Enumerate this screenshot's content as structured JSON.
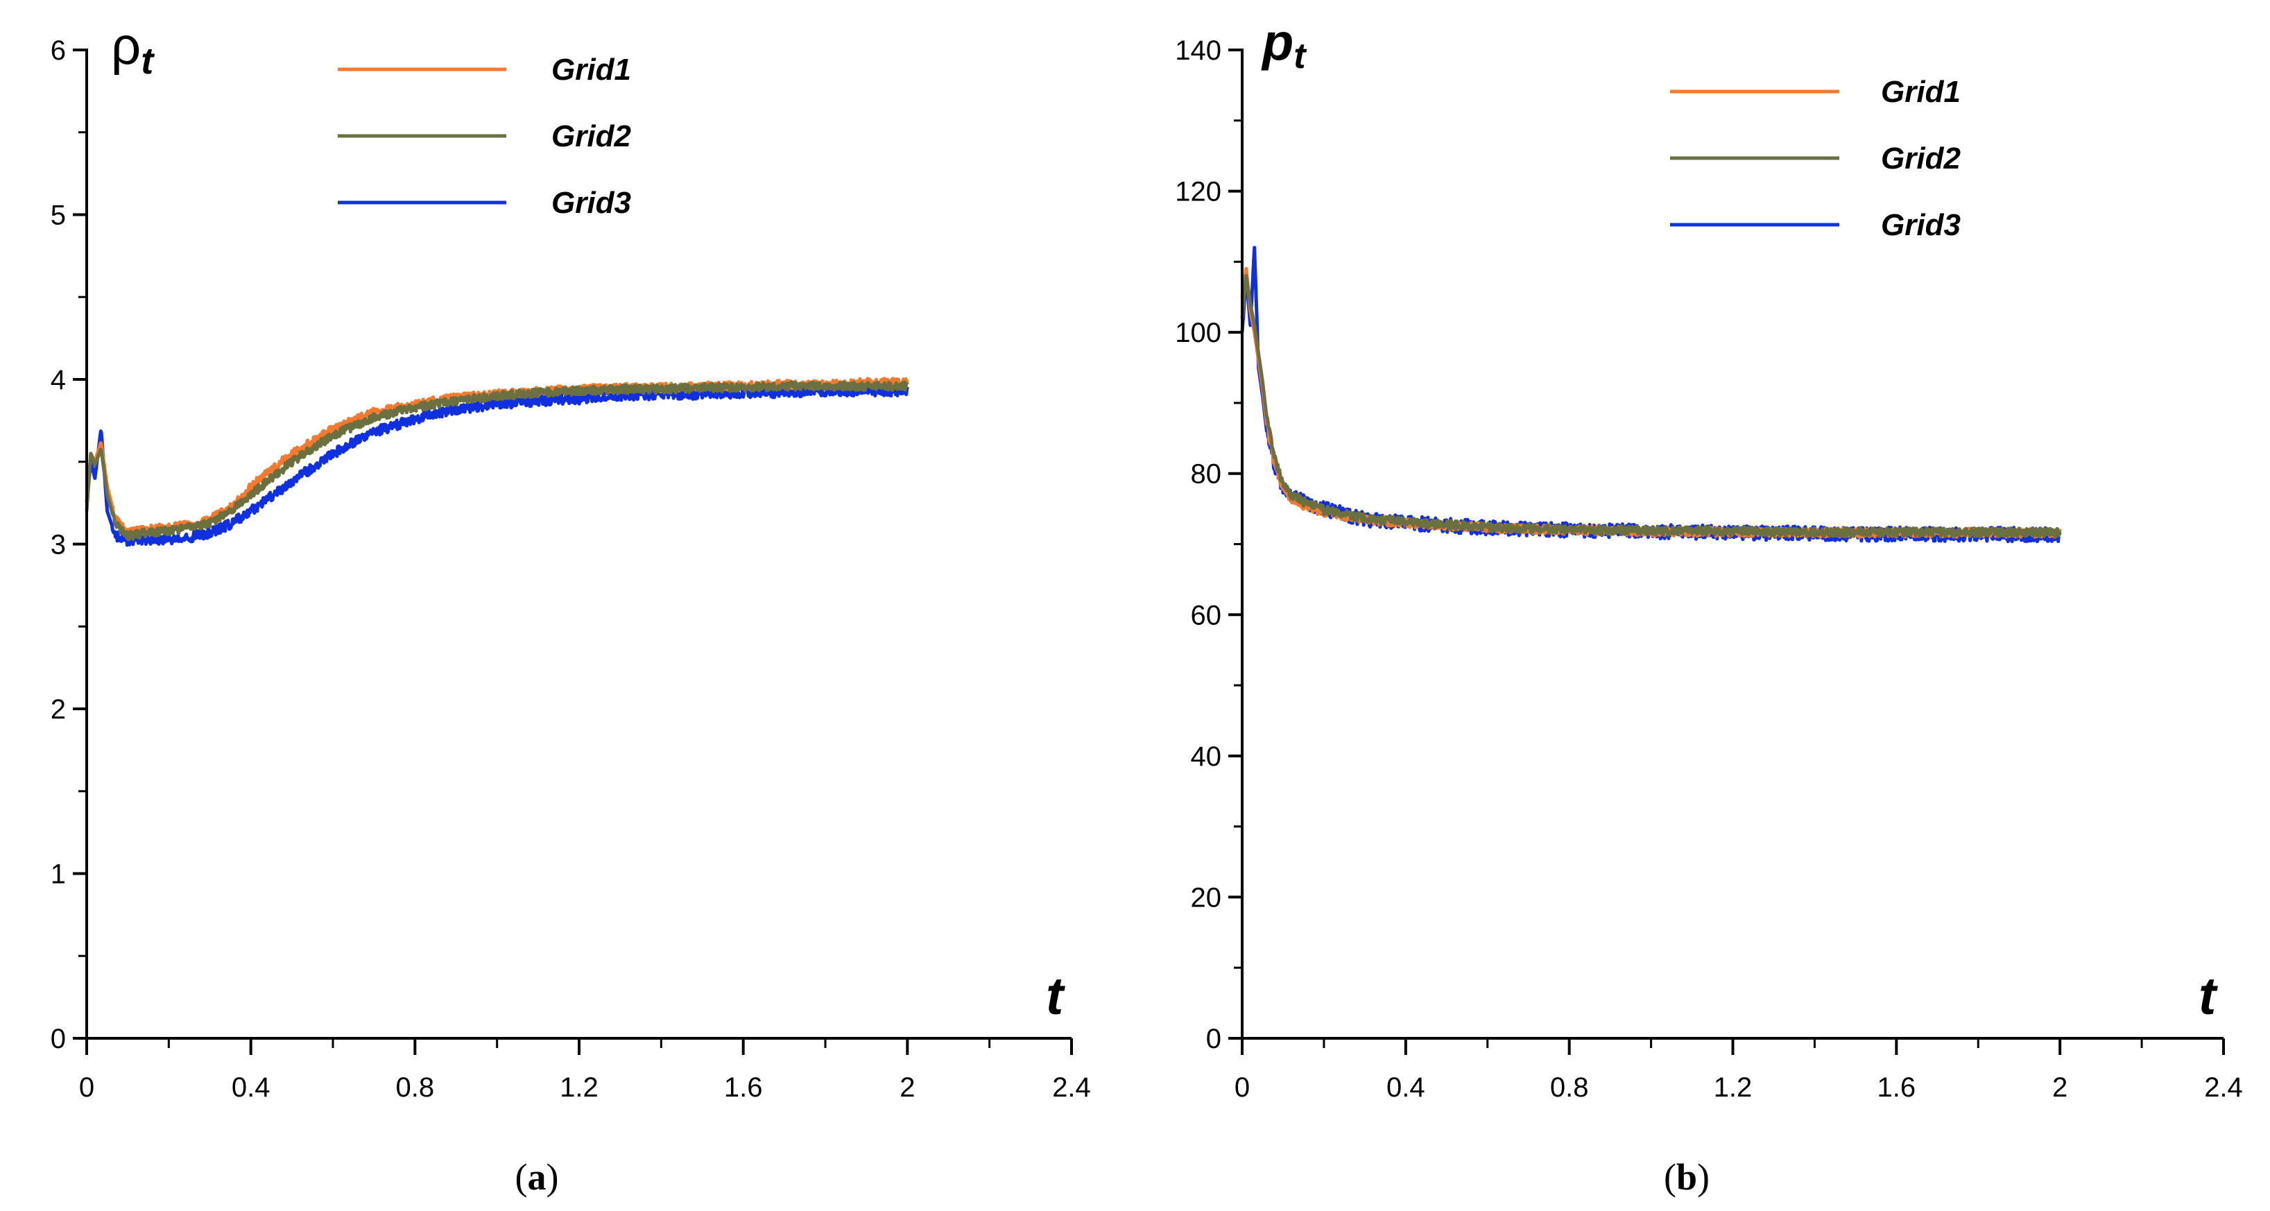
{
  "chart_data": [
    {
      "type": "line",
      "panel_label": "a",
      "ylabel": "ρt",
      "ylabel_main": "ρ",
      "ylabel_sub": "t",
      "xlabel": "t",
      "xlim": [
        0,
        2.4
      ],
      "ylim": [
        0,
        6
      ],
      "x_ticks": [
        "0",
        "0.4",
        "0.8",
        "1.2",
        "1.6",
        "2",
        "2.4"
      ],
      "y_ticks": [
        "0",
        "1",
        "2",
        "3",
        "4",
        "5",
        "6"
      ],
      "legend_position": "top-center",
      "series": [
        {
          "name": "Grid1",
          "color": "#f47a2d",
          "noise": 0.025,
          "x": [
            0,
            0.01,
            0.02,
            0.035,
            0.05,
            0.07,
            0.1,
            0.15,
            0.2,
            0.25,
            0.3,
            0.35,
            0.4,
            0.5,
            0.6,
            0.7,
            0.8,
            0.9,
            1.0,
            1.1,
            1.2,
            1.3,
            1.4,
            1.5,
            1.6,
            1.7,
            1.8,
            1.9,
            2.0
          ],
          "values": [
            3.25,
            3.55,
            3.5,
            3.62,
            3.35,
            3.15,
            3.07,
            3.09,
            3.1,
            3.12,
            3.15,
            3.22,
            3.35,
            3.55,
            3.7,
            3.8,
            3.85,
            3.89,
            3.91,
            3.93,
            3.94,
            3.95,
            3.95,
            3.96,
            3.96,
            3.97,
            3.97,
            3.98,
            3.98
          ]
        },
        {
          "name": "Grid2",
          "color": "#6b7040",
          "noise": 0.025,
          "x": [
            0,
            0.01,
            0.02,
            0.035,
            0.05,
            0.07,
            0.1,
            0.15,
            0.2,
            0.25,
            0.3,
            0.35,
            0.4,
            0.5,
            0.6,
            0.7,
            0.8,
            0.9,
            1.0,
            1.1,
            1.2,
            1.3,
            1.4,
            1.5,
            1.6,
            1.7,
            1.8,
            1.9,
            2.0
          ],
          "values": [
            3.2,
            3.55,
            3.48,
            3.58,
            3.3,
            3.12,
            3.05,
            3.07,
            3.08,
            3.1,
            3.13,
            3.2,
            3.3,
            3.5,
            3.66,
            3.77,
            3.83,
            3.87,
            3.9,
            3.92,
            3.93,
            3.94,
            3.94,
            3.95,
            3.95,
            3.96,
            3.96,
            3.96,
            3.96
          ]
        },
        {
          "name": "Grid3",
          "color": "#1030e0",
          "noise": 0.03,
          "x": [
            0,
            0.01,
            0.02,
            0.035,
            0.05,
            0.07,
            0.1,
            0.15,
            0.2,
            0.25,
            0.3,
            0.35,
            0.4,
            0.5,
            0.6,
            0.7,
            0.8,
            0.9,
            1.0,
            1.1,
            1.2,
            1.3,
            1.4,
            1.5,
            1.6,
            1.7,
            1.8,
            1.9,
            2.0
          ],
          "values": [
            3.25,
            3.5,
            3.4,
            3.7,
            3.2,
            3.05,
            3.02,
            3.03,
            3.03,
            3.04,
            3.07,
            3.12,
            3.2,
            3.38,
            3.55,
            3.68,
            3.76,
            3.82,
            3.85,
            3.87,
            3.88,
            3.9,
            3.91,
            3.91,
            3.92,
            3.92,
            3.93,
            3.93,
            3.93
          ]
        }
      ]
    },
    {
      "type": "line",
      "panel_label": "b",
      "ylabel": "pt",
      "ylabel_main": "p",
      "ylabel_sub": "t",
      "xlabel": "t",
      "xlim": [
        0,
        2.4
      ],
      "ylim": [
        0,
        140
      ],
      "x_ticks": [
        "0",
        "0.4",
        "0.8",
        "1.2",
        "1.6",
        "2",
        "2.4"
      ],
      "y_ticks": [
        "0",
        "20",
        "40",
        "60",
        "80",
        "100",
        "120",
        "140"
      ],
      "legend_position": "top-right",
      "series": [
        {
          "name": "Grid1",
          "color": "#f47a2d",
          "noise": 0.6,
          "x": [
            0,
            0.01,
            0.02,
            0.03,
            0.04,
            0.05,
            0.06,
            0.08,
            0.1,
            0.12,
            0.15,
            0.2,
            0.3,
            0.4,
            0.6,
            0.8,
            1.0,
            1.2,
            1.4,
            1.6,
            1.8,
            2.0
          ],
          "values": [
            105,
            109,
            103,
            100,
            96,
            92,
            87,
            81,
            78,
            76.5,
            75.5,
            74.5,
            73.5,
            73,
            72.3,
            72,
            71.8,
            71.7,
            71.6,
            71.6,
            71.6,
            71.6
          ]
        },
        {
          "name": "Grid2",
          "color": "#6b7040",
          "noise": 0.6,
          "x": [
            0,
            0.01,
            0.02,
            0.03,
            0.04,
            0.05,
            0.06,
            0.08,
            0.1,
            0.12,
            0.15,
            0.2,
            0.3,
            0.4,
            0.6,
            0.8,
            1.0,
            1.2,
            1.4,
            1.6,
            1.8,
            2.0
          ],
          "values": [
            102,
            108,
            104,
            101,
            97,
            93,
            88,
            82,
            78.5,
            77,
            76,
            74.8,
            73.7,
            73.1,
            72.4,
            72.1,
            71.9,
            71.8,
            71.7,
            71.7,
            71.7,
            71.6
          ]
        },
        {
          "name": "Grid3",
          "color": "#1030e0",
          "noise": 1.0,
          "x": [
            0,
            0.01,
            0.02,
            0.03,
            0.04,
            0.05,
            0.06,
            0.08,
            0.1,
            0.12,
            0.15,
            0.2,
            0.3,
            0.4,
            0.6,
            0.8,
            1.0,
            1.2,
            1.4,
            1.6,
            1.8,
            2.0
          ],
          "values": [
            100,
            108,
            101,
            112,
            95,
            91,
            86,
            81,
            78,
            77,
            76,
            75,
            73.5,
            73,
            72.3,
            72,
            71.8,
            71.6,
            71.5,
            71.4,
            71.4,
            71.3
          ]
        }
      ]
    }
  ]
}
